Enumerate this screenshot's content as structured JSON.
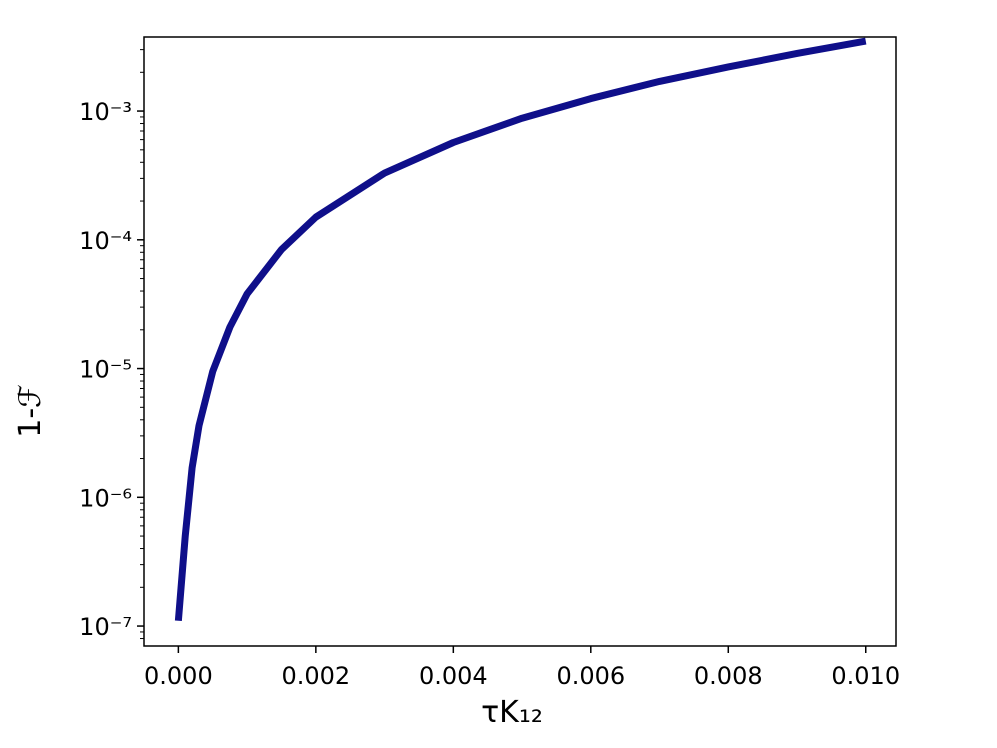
{
  "chart_data": {
    "type": "line",
    "xlabel": "τK₁₂",
    "ylabel": "1-ℱ",
    "yscale": "log",
    "x": [
      0,
      0.0001,
      0.0002,
      0.0003,
      0.0005,
      0.00075,
      0.001,
      0.0015,
      0.002,
      0.003,
      0.004,
      0.005,
      0.006,
      0.007,
      0.008,
      0.009,
      0.01
    ],
    "series": [
      {
        "color": "#0f0f8a",
        "values": [
          1.1e-07,
          5e-07,
          1.7e-06,
          3.6e-06,
          9.5e-06,
          2.1e-05,
          3.8e-05,
          8.4e-05,
          0.00015,
          0.00033,
          0.00057,
          0.00088,
          0.00125,
          0.0017,
          0.0022,
          0.0028,
          0.0035
        ]
      }
    ],
    "xlim": [
      -0.0005,
      0.01044
    ],
    "ylim": [
      7e-08,
      0.00376
    ],
    "xticks": [
      {
        "value": 0,
        "label": "0.000"
      },
      {
        "value": 0.002,
        "label": "0.002"
      },
      {
        "value": 0.004,
        "label": "0.004"
      },
      {
        "value": 0.006,
        "label": "0.006"
      },
      {
        "value": 0.008,
        "label": "0.008"
      },
      {
        "value": 0.01,
        "label": "0.010"
      }
    ],
    "yticks": [
      {
        "value": 1e-07,
        "label": "10⁻⁷"
      },
      {
        "value": 1e-06,
        "label": "10⁻⁶"
      },
      {
        "value": 1e-05,
        "label": "10⁻⁵"
      },
      {
        "value": 0.0001,
        "label": "10⁻⁴"
      },
      {
        "value": 0.001,
        "label": "10⁻³"
      }
    ],
    "yminorticks": [
      8e-08,
      9e-08,
      2e-07,
      3e-07,
      4e-07,
      5e-07,
      6e-07,
      7e-07,
      8e-07,
      9e-07,
      2e-06,
      3e-06,
      4e-06,
      5e-06,
      6e-06,
      7e-06,
      8e-06,
      9e-06,
      2e-05,
      3e-05,
      4e-05,
      5e-05,
      6e-05,
      7e-05,
      8e-05,
      9e-05,
      0.0002,
      0.0003,
      0.0004,
      0.0005,
      0.0006,
      0.0007,
      0.0008,
      0.0009,
      0.002,
      0.003
    ],
    "grid": false
  }
}
